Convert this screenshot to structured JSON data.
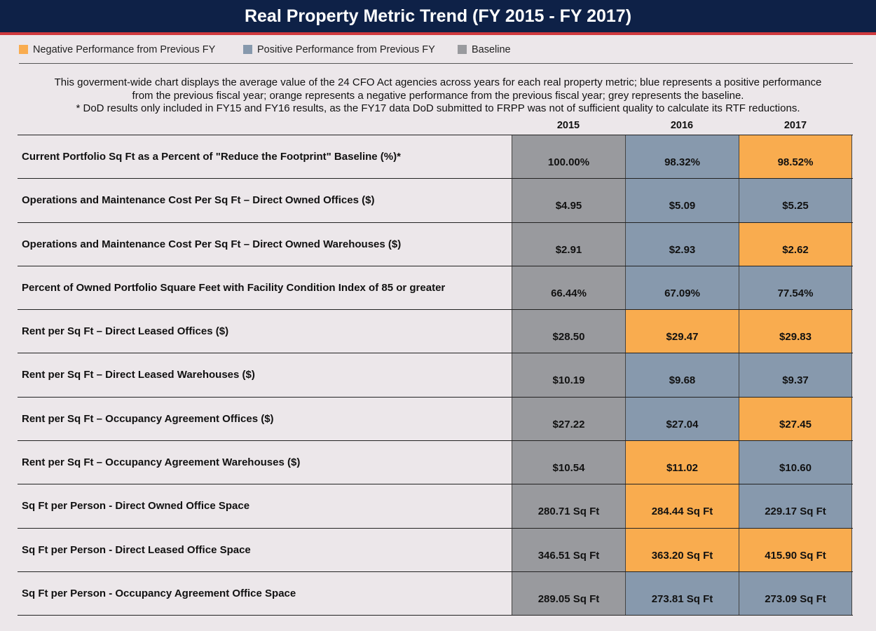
{
  "title": "Real Property Metric Trend (FY 2015 - FY 2017)",
  "colors": {
    "negative": "#f9ac4f",
    "positive": "#8799ad",
    "baseline": "#999a9e",
    "header_bg": "#0e2147",
    "header_rule": "#d0393e"
  },
  "legend": [
    {
      "label": "Negative Performance from Previous FY",
      "status": "negative"
    },
    {
      "label": "Positive Performance from Previous FY",
      "status": "positive"
    },
    {
      "label": "Baseline",
      "status": "baseline"
    }
  ],
  "description": [
    "This goverment-wide chart displays the average value of the 24 CFO Act agencies across years for each real property metric; blue represents a positive performance",
    "from the previous fiscal year; orange represents a negative performance from the previous fiscal year; grey represents the baseline.",
    "* DoD results only included in FY15 and FY16 results, as the FY17 data DoD submitted to FRPP was not of sufficient quality to calculate its RTF reductions."
  ],
  "chart_data": {
    "type": "table",
    "columns": [
      "2015",
      "2016",
      "2017"
    ],
    "rows": [
      {
        "metric": "Current Portfolio Sq Ft as a Percent of \"Reduce the Footprint\" Baseline (%)*",
        "values": [
          "100.00%",
          "98.32%",
          "98.52%"
        ],
        "status": [
          "baseline",
          "positive",
          "negative"
        ]
      },
      {
        "metric": "Operations and Maintenance Cost Per Sq Ft – Direct Owned Offices ($)",
        "values": [
          "$4.95",
          "$5.09",
          "$5.25"
        ],
        "status": [
          "baseline",
          "positive",
          "positive"
        ]
      },
      {
        "metric": "Operations and Maintenance Cost Per Sq Ft – Direct Owned Warehouses ($)",
        "values": [
          "$2.91",
          "$2.93",
          "$2.62"
        ],
        "status": [
          "baseline",
          "positive",
          "negative"
        ]
      },
      {
        "metric": "Percent of Owned Portfolio Square Feet with Facility Condition Index of 85 or greater",
        "values": [
          "66.44%",
          "67.09%",
          "77.54%"
        ],
        "status": [
          "baseline",
          "positive",
          "positive"
        ]
      },
      {
        "metric": "Rent per Sq Ft – Direct Leased Offices ($)",
        "values": [
          "$28.50",
          "$29.47",
          "$29.83"
        ],
        "status": [
          "baseline",
          "negative",
          "negative"
        ]
      },
      {
        "metric": "Rent per Sq Ft – Direct Leased Warehouses ($)",
        "values": [
          "$10.19",
          "$9.68",
          "$9.37"
        ],
        "status": [
          "baseline",
          "positive",
          "positive"
        ]
      },
      {
        "metric": "Rent per Sq Ft – Occupancy Agreement Offices ($)",
        "values": [
          "$27.22",
          "$27.04",
          "$27.45"
        ],
        "status": [
          "baseline",
          "positive",
          "negative"
        ]
      },
      {
        "metric": "Rent per Sq Ft – Occupancy Agreement Warehouses ($)",
        "values": [
          "$10.54",
          "$11.02",
          "$10.60"
        ],
        "status": [
          "baseline",
          "negative",
          "positive"
        ]
      },
      {
        "metric": "Sq Ft per Person - Direct Owned Office Space",
        "values": [
          "280.71 Sq Ft",
          "284.44 Sq Ft",
          "229.17 Sq Ft"
        ],
        "status": [
          "baseline",
          "negative",
          "positive"
        ]
      },
      {
        "metric": "Sq Ft per Person - Direct Leased Office Space",
        "values": [
          "346.51 Sq Ft",
          "363.20 Sq Ft",
          "415.90 Sq Ft"
        ],
        "status": [
          "baseline",
          "negative",
          "negative"
        ]
      },
      {
        "metric": "Sq Ft per Person - Occupancy Agreement Office Space",
        "values": [
          "289.05 Sq Ft",
          "273.81 Sq Ft",
          "273.09 Sq Ft"
        ],
        "status": [
          "baseline",
          "positive",
          "positive"
        ]
      }
    ]
  }
}
